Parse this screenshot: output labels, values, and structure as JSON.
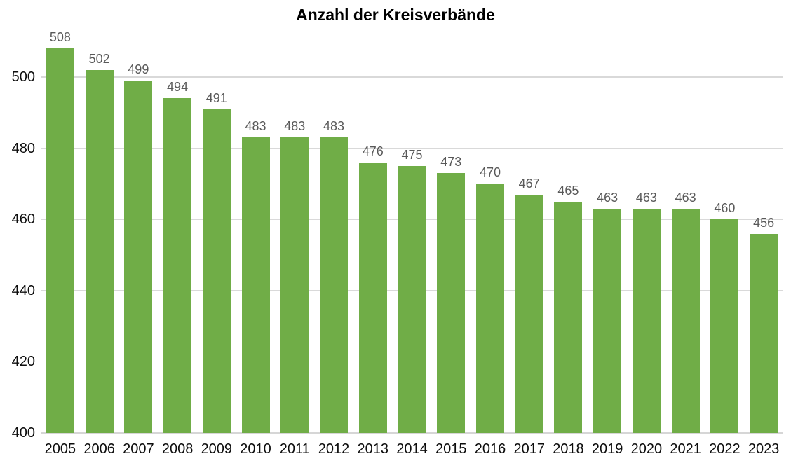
{
  "chart_data": {
    "type": "bar",
    "title": "Anzahl der Kreisverbände",
    "categories": [
      "2005",
      "2006",
      "2007",
      "2008",
      "2009",
      "2010",
      "2011",
      "2012",
      "2013",
      "2014",
      "2015",
      "2016",
      "2017",
      "2018",
      "2019",
      "2020",
      "2021",
      "2022",
      "2023"
    ],
    "values": [
      508,
      502,
      499,
      494,
      491,
      483,
      483,
      483,
      476,
      475,
      473,
      470,
      467,
      465,
      463,
      463,
      463,
      460,
      456
    ],
    "xlabel": "",
    "ylabel": "",
    "ylim": [
      400,
      510
    ],
    "yticks": [
      400,
      420,
      440,
      460,
      480,
      500
    ],
    "grid": true,
    "legend": "none",
    "value_labels_shown": true,
    "colors": {
      "bar": "#70ad47",
      "gridline": "#d9d9d9",
      "axis_line": "#d6d6d6",
      "title_text": "#000000",
      "axis_label_text": "#0d0d0d",
      "value_label_text": "#595959",
      "background": "#ffffff"
    }
  }
}
